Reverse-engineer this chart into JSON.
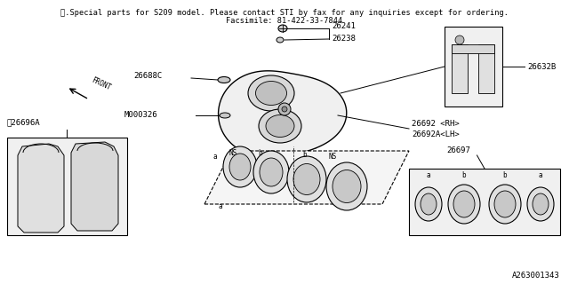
{
  "title_line1": "※.Special parts for S209 model. Please contact STI by fax for any inquiries except for ordering.",
  "title_line2": "Facsimile: 81-422-33-7844",
  "footer": "A263001343",
  "bg_color": "#ffffff",
  "line_color": "#000000",
  "fill_caliper": "#f0f0f0",
  "fill_piston": "#e8e8e8",
  "fill_ring": "#e0e0e0"
}
